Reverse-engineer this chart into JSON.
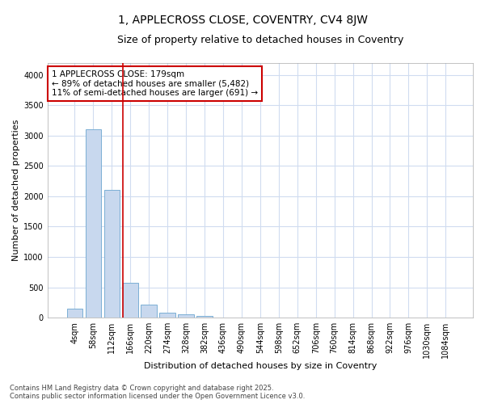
{
  "title": "1, APPLECROSS CLOSE, COVENTRY, CV4 8JW",
  "subtitle": "Size of property relative to detached houses in Coventry",
  "xlabel": "Distribution of detached houses by size in Coventry",
  "ylabel": "Number of detached properties",
  "bar_color": "#c8d8ee",
  "bar_edge_color": "#7bafd4",
  "vline_color": "#cc0000",
  "annotation_text": "1 APPLECROSS CLOSE: 179sqm\n← 89% of detached houses are smaller (5,482)\n11% of semi-detached houses are larger (691) →",
  "background_color": "#ffffff",
  "grid_color": "#d0dcf0",
  "categories": [
    "4sqm",
    "58sqm",
    "112sqm",
    "166sqm",
    "220sqm",
    "274sqm",
    "328sqm",
    "382sqm",
    "436sqm",
    "490sqm",
    "544sqm",
    "598sqm",
    "652sqm",
    "706sqm",
    "760sqm",
    "814sqm",
    "868sqm",
    "922sqm",
    "976sqm",
    "1030sqm",
    "1084sqm"
  ],
  "values": [
    150,
    3100,
    2100,
    580,
    210,
    80,
    50,
    30,
    0,
    0,
    0,
    0,
    0,
    0,
    0,
    0,
    0,
    0,
    0,
    0,
    0
  ],
  "ylim": [
    0,
    4200
  ],
  "yticks": [
    0,
    500,
    1000,
    1500,
    2000,
    2500,
    3000,
    3500,
    4000
  ],
  "footer_text": "Contains HM Land Registry data © Crown copyright and database right 2025.\nContains public sector information licensed under the Open Government Licence v3.0.",
  "title_fontsize": 10,
  "subtitle_fontsize": 9,
  "label_fontsize": 8,
  "tick_fontsize": 7,
  "annotation_fontsize": 7.5,
  "footer_fontsize": 6
}
